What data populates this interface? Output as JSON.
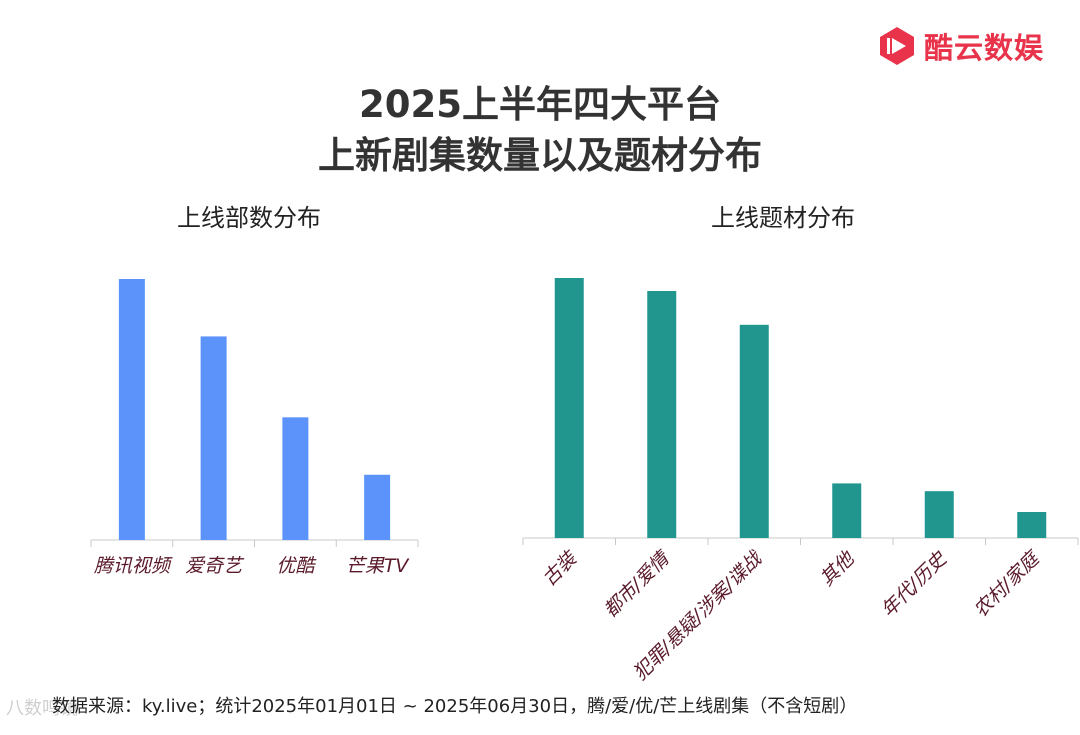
{
  "brand": {
    "name": "酷云数娱",
    "color": "#e8334a",
    "icon": "play-logo-icon"
  },
  "title": {
    "line1": "2025上半年四大平台",
    "line2": "上新剧集数量以及题材分布"
  },
  "chart_data": [
    {
      "type": "bar",
      "title": "上线部数分布",
      "categories": [
        "腾讯视频",
        "爱奇艺",
        "优酷",
        "芒果TV"
      ],
      "values": [
        100,
        78,
        47,
        25
      ],
      "ylim": [
        0,
        100
      ],
      "color": "#5b93fb",
      "grid": false,
      "legend": "none"
    },
    {
      "type": "bar",
      "title": "上线题材分布",
      "categories": [
        "古装",
        "都市/爱情",
        "犯罪/悬疑/涉案/谍战",
        "其他",
        "年代/历史",
        "农村/家庭"
      ],
      "values": [
        100,
        95,
        82,
        21,
        18,
        10
      ],
      "ylim": [
        0,
        100
      ],
      "color": "#20968f",
      "grid": false,
      "legend": "none"
    }
  ],
  "footer": {
    "source": "数据来源：ky.live；统计2025年01月01日 ~ 2025年06月30日，腾/爱/优/芒上线剧集（不含短剧）"
  },
  "watermark": {
    "text": "八数鸣镜"
  }
}
